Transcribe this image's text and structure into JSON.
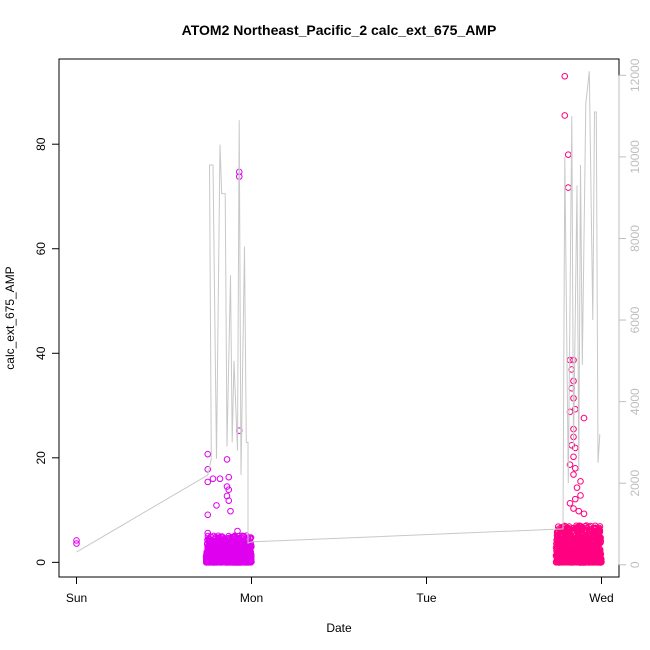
{
  "chart_data": {
    "type": "scatter",
    "title": "ATOM2 Northeast_Pacific_2 calc_ext_675_AMP",
    "xlabel": "Date",
    "ylabel": "calc_ext_675_AMP",
    "x_ticks": [
      "Sun",
      "Mon",
      "Tue",
      "Wed"
    ],
    "x_tick_values": [
      0,
      1,
      2,
      3
    ],
    "x_unit": "days",
    "xlim": [
      -0.1,
      3.1
    ],
    "y_ticks": [
      "0",
      "20",
      "40",
      "60",
      "80"
    ],
    "y_tick_values": [
      0,
      20,
      40,
      60,
      80
    ],
    "ylim": [
      -2.8,
      96.3
    ],
    "y2_ticks": [
      "0",
      "2000",
      "4000",
      "6000",
      "8000",
      "10000",
      "12000"
    ],
    "y2_tick_values": [
      0,
      2000,
      4000,
      6000,
      8000,
      10000,
      12000
    ],
    "y2lim": [
      -300,
      12400
    ],
    "grid": false,
    "colors": {
      "early_points": "#e000f0",
      "late_points": "#ff0080",
      "line": "#c8c8c8",
      "axis": "#000000",
      "right_axis": "#bebebe"
    },
    "series": [
      {
        "type": "scatter",
        "axis": "left",
        "points": [
          [
            0.0,
            4.2
          ],
          [
            0.0,
            3.6
          ],
          [
            0.75,
            20.7
          ],
          [
            0.75,
            17.8
          ],
          [
            0.75,
            15.4
          ],
          [
            0.75,
            9.1
          ],
          [
            0.75,
            5.6
          ],
          [
            0.75,
            2.8
          ],
          [
            0.78,
            16.0
          ],
          [
            0.8,
            10.9
          ],
          [
            0.82,
            16.0
          ],
          [
            0.86,
            19.7
          ],
          [
            0.87,
            16.3
          ],
          [
            0.86,
            14.5
          ],
          [
            0.87,
            13.9
          ],
          [
            0.86,
            12.7
          ],
          [
            0.87,
            11.8
          ],
          [
            0.88,
            9.8
          ],
          [
            0.92,
            6.0
          ],
          [
            0.93,
            74.7
          ],
          [
            0.93,
            73.8
          ],
          [
            0.93,
            25.2
          ],
          [
            0.98,
            3.2
          ],
          [
            2.79,
            93.0
          ],
          [
            2.79,
            85.5
          ],
          [
            2.81,
            78.0
          ],
          [
            2.81,
            71.7
          ],
          [
            2.82,
            38.7
          ],
          [
            2.84,
            38.7
          ],
          [
            2.83,
            36.9
          ],
          [
            2.84,
            34.7
          ],
          [
            2.83,
            33.3
          ],
          [
            2.84,
            31.4
          ],
          [
            2.82,
            28.8
          ],
          [
            2.85,
            29.3
          ],
          [
            2.84,
            25.5
          ],
          [
            2.84,
            24.0
          ],
          [
            2.83,
            22.4
          ],
          [
            2.85,
            21.9
          ],
          [
            2.84,
            20.2
          ],
          [
            2.82,
            18.7
          ],
          [
            2.85,
            18.0
          ],
          [
            2.84,
            16.8
          ],
          [
            2.88,
            15.5
          ],
          [
            2.86,
            14.3
          ],
          [
            2.88,
            12.8
          ],
          [
            2.85,
            12.1
          ],
          [
            2.82,
            11.3
          ],
          [
            2.84,
            10.3
          ],
          [
            2.87,
            9.8
          ],
          [
            2.9,
            27.6
          ],
          [
            2.9,
            9.3
          ],
          [
            2.93,
            4.5
          ],
          [
            2.98,
            4.0
          ]
        ]
      },
      {
        "type": "line",
        "axis": "right",
        "points": [
          [
            0.0,
            310
          ],
          [
            0.75,
            2200
          ],
          [
            0.77,
            2600
          ],
          [
            0.76,
            9800
          ],
          [
            0.78,
            9800
          ],
          [
            0.8,
            2600
          ],
          [
            0.82,
            10300
          ],
          [
            0.83,
            9100
          ],
          [
            0.85,
            9100
          ],
          [
            0.86,
            2900
          ],
          [
            0.88,
            7100
          ],
          [
            0.89,
            3000
          ],
          [
            0.9,
            5000
          ],
          [
            0.92,
            2800
          ],
          [
            0.93,
            10900
          ],
          [
            0.94,
            2200
          ],
          [
            0.96,
            7800
          ],
          [
            0.97,
            3000
          ],
          [
            0.98,
            3000
          ],
          [
            0.98,
            530
          ],
          [
            1.0,
            560
          ],
          [
            2.78,
            880
          ],
          [
            2.79,
            10000
          ],
          [
            2.81,
            2000
          ],
          [
            2.83,
            11000
          ],
          [
            2.84,
            2800
          ],
          [
            2.86,
            9300
          ],
          [
            2.87,
            2300
          ],
          [
            2.88,
            9800
          ],
          [
            2.89,
            4900
          ],
          [
            2.91,
            11300
          ],
          [
            2.93,
            12100
          ],
          [
            2.95,
            6000
          ],
          [
            2.96,
            11100
          ],
          [
            2.97,
            11100
          ],
          [
            2.98,
            2500
          ],
          [
            2.99,
            3200
          ]
        ]
      }
    ]
  }
}
